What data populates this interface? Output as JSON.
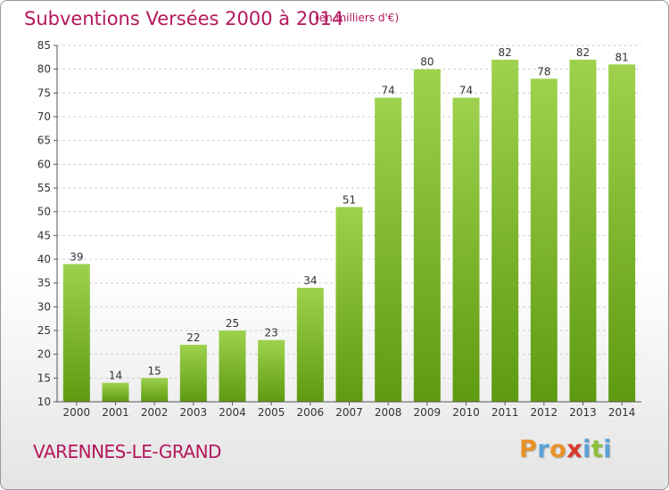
{
  "title": "Subventions Versées 2000 à 2014",
  "subtitle": "(en milliers d'€)",
  "location": "VARENNES-LE-GRAND",
  "logo": {
    "letters": [
      "P",
      "r",
      "o",
      "x",
      "i",
      "t",
      "i"
    ],
    "colors": [
      "#e8922a",
      "#5aa0d6",
      "#e8922a",
      "#d93a2b",
      "#5aa0d6",
      "#8dbf3d",
      "#5aa0d6"
    ]
  },
  "colors": {
    "bar_top": "#9ed24e",
    "bar_bottom": "#5e9a10",
    "title": "#b5175d",
    "grid": "#cfcfcf"
  },
  "chart_data": {
    "type": "bar",
    "categories": [
      "2000",
      "2001",
      "2002",
      "2003",
      "2004",
      "2005",
      "2006",
      "2007",
      "2008",
      "2009",
      "2010",
      "2011",
      "2012",
      "2013",
      "2014"
    ],
    "values": [
      39,
      14,
      15,
      22,
      25,
      23,
      34,
      51,
      74,
      80,
      74,
      82,
      78,
      82,
      81
    ],
    "ylim": [
      10,
      85
    ],
    "yticks": [
      10,
      15,
      20,
      25,
      30,
      35,
      40,
      45,
      50,
      55,
      60,
      65,
      70,
      75,
      80,
      85
    ],
    "grid": true
  }
}
